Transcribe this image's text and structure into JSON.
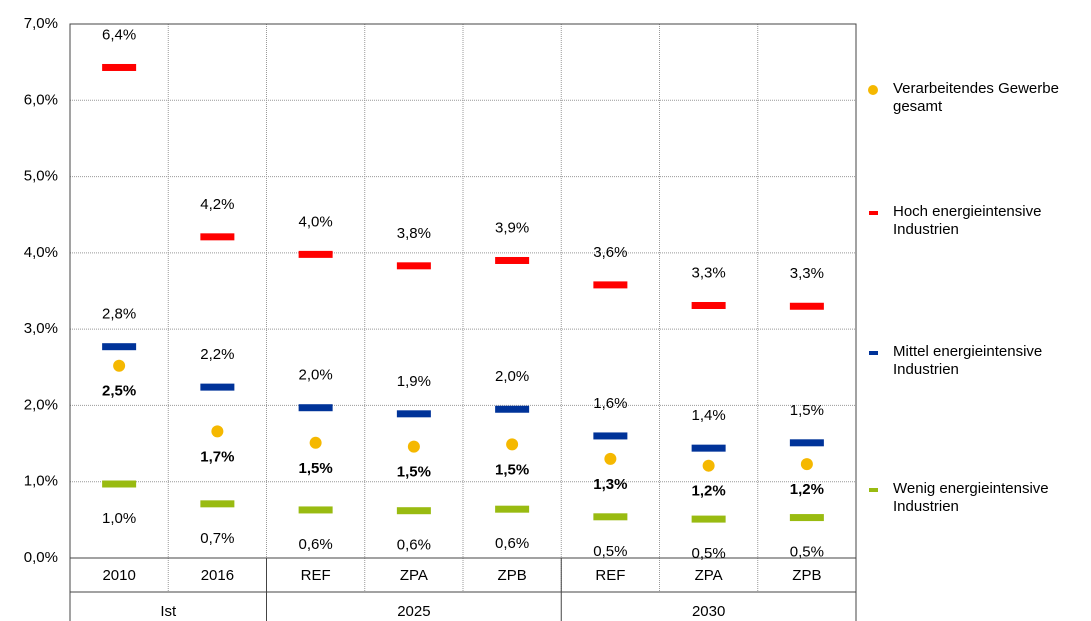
{
  "chart_data": {
    "type": "marker",
    "categories": [
      "2010",
      "2016",
      "REF",
      "ZPA",
      "ZPB",
      "REF",
      "ZPA",
      "ZPB"
    ],
    "groups": [
      {
        "name": "Ist",
        "span": 2
      },
      {
        "name": "2025",
        "span": 3
      },
      {
        "name": "2030",
        "span": 3
      }
    ],
    "ylim": [
      0,
      7
    ],
    "yticks": [
      {
        "value": 0,
        "label": "0,0%"
      },
      {
        "value": 1,
        "label": "1,0%"
      },
      {
        "value": 2,
        "label": "2,0%"
      },
      {
        "value": 3,
        "label": "3,0%"
      },
      {
        "value": 4,
        "label": "4,0%"
      },
      {
        "value": 5,
        "label": "5,0%"
      },
      {
        "value": 6,
        "label": "6,0%"
      },
      {
        "value": 7,
        "label": "7,0%"
      }
    ],
    "grid": true,
    "legend": "right",
    "series": [
      {
        "name": "Verarbeitendes Gewerbe gesamt",
        "color": "#f5b800",
        "marker": "circle",
        "label_position": "below",
        "label_bold": true,
        "values": [
          2.52,
          1.66,
          1.51,
          1.46,
          1.49,
          1.3,
          1.21,
          1.23
        ],
        "value_labels": [
          "2,5%",
          "1,7%",
          "1,5%",
          "1,5%",
          "1,5%",
          "1,3%",
          "1,2%",
          "1,2%"
        ]
      },
      {
        "name": "Hoch energieintensive Industrien",
        "color": "#ff0000",
        "marker": "dash",
        "label_position": "above",
        "label_bold": false,
        "values": [
          6.43,
          4.21,
          3.98,
          3.83,
          3.9,
          3.58,
          3.31,
          3.3
        ],
        "value_labels": [
          "6,4%",
          "4,2%",
          "4,0%",
          "3,8%",
          "3,9%",
          "3,6%",
          "3,3%",
          "3,3%"
        ]
      },
      {
        "name": "Mittel energieintensive Industrien",
        "color": "#003399",
        "marker": "dash",
        "label_position": "above",
        "label_bold": false,
        "values": [
          2.77,
          2.24,
          1.97,
          1.89,
          1.95,
          1.6,
          1.44,
          1.51
        ],
        "value_labels": [
          "2,8%",
          "2,2%",
          "2,0%",
          "1,9%",
          "2,0%",
          "1,6%",
          "1,4%",
          "1,5%"
        ]
      },
      {
        "name": "Wenig energieintensive Industrien",
        "color": "#99bb11",
        "marker": "dash",
        "label_position": "below",
        "label_bold": false,
        "values": [
          0.97,
          0.71,
          0.63,
          0.62,
          0.64,
          0.54,
          0.51,
          0.53
        ],
        "value_labels": [
          "1,0%",
          "0,7%",
          "0,6%",
          "0,6%",
          "0,6%",
          "0,5%",
          "0,5%",
          "0,5%"
        ]
      }
    ]
  }
}
